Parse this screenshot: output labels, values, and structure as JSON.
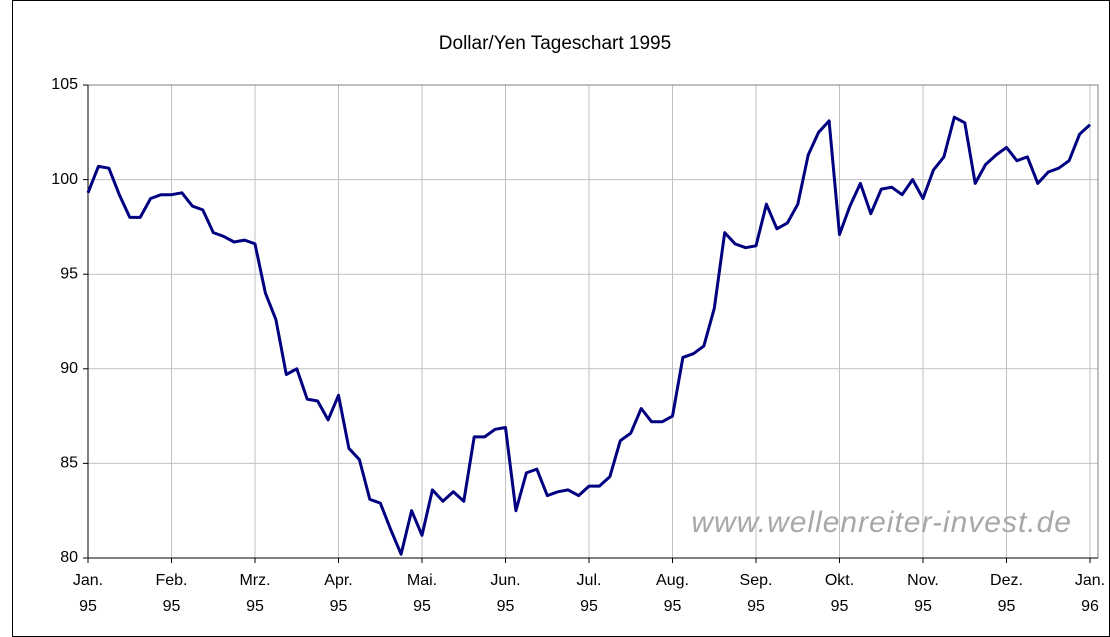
{
  "chart_data": {
    "type": "line",
    "title": "Dollar/Yen Tageschart 1995",
    "annotation": "www.wellenreiter-invest.de",
    "categories": [
      "Jan. 95",
      null,
      null,
      null,
      null,
      null,
      null,
      null,
      "Feb. 95",
      null,
      null,
      null,
      null,
      null,
      null,
      null,
      "Mrz. 95",
      null,
      null,
      null,
      null,
      null,
      null,
      null,
      "Apr. 95",
      null,
      null,
      null,
      null,
      null,
      null,
      null,
      "Mai. 95",
      null,
      null,
      null,
      null,
      null,
      null,
      null,
      "Jun. 95",
      null,
      null,
      null,
      null,
      null,
      null,
      null,
      "Jul. 95",
      null,
      null,
      null,
      null,
      null,
      null,
      null,
      "Aug. 95",
      null,
      null,
      null,
      null,
      null,
      null,
      null,
      "Sep. 95",
      null,
      null,
      null,
      null,
      null,
      null,
      null,
      "Okt. 95",
      null,
      null,
      null,
      null,
      null,
      null,
      null,
      "Nov. 95",
      null,
      null,
      null,
      null,
      null,
      null,
      null,
      "Dez. 95",
      null,
      null,
      null,
      null,
      null,
      null,
      null,
      "Jan. 96"
    ],
    "values": [
      99.3,
      100.7,
      100.6,
      99.2,
      98.0,
      98.0,
      99.0,
      99.2,
      99.2,
      99.3,
      98.6,
      98.4,
      97.2,
      97.0,
      96.7,
      96.8,
      96.6,
      94.0,
      92.6,
      89.7,
      90.0,
      88.4,
      88.3,
      87.3,
      88.6,
      85.8,
      85.2,
      83.1,
      82.9,
      81.5,
      80.2,
      82.5,
      81.2,
      83.6,
      83.0,
      83.5,
      83.0,
      86.4,
      86.4,
      86.8,
      86.9,
      82.5,
      84.5,
      84.7,
      83.3,
      83.5,
      83.6,
      83.3,
      83.8,
      83.8,
      84.3,
      86.2,
      86.6,
      87.9,
      87.2,
      87.2,
      87.5,
      90.6,
      90.8,
      91.2,
      93.2,
      97.2,
      96.6,
      96.4,
      96.5,
      98.7,
      97.4,
      97.7,
      98.7,
      101.3,
      102.5,
      103.1,
      97.1,
      98.6,
      99.8,
      98.2,
      99.5,
      99.6,
      99.2,
      100.0,
      99.0,
      100.5,
      101.2,
      103.3,
      103.0,
      99.8,
      100.8,
      101.3,
      101.7,
      101.0,
      101.2,
      99.8,
      100.4,
      100.6,
      101.0,
      102.4,
      102.9
    ],
    "color": "#000080",
    "ylim": [
      80,
      105
    ],
    "yticks": [
      80,
      85,
      90,
      95,
      100,
      105
    ],
    "grid": true
  }
}
